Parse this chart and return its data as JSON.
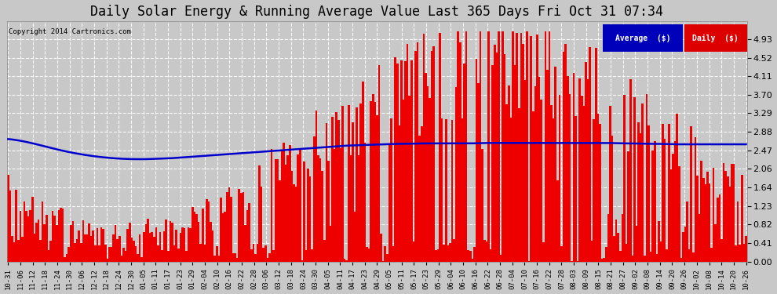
{
  "title": "Daily Solar Energy & Running Average Value Last 365 Days Fri Oct 31 07:34",
  "title_fontsize": 12,
  "copyright_text": "Copyright 2014 Cartronics.com",
  "background_color": "#c8c8c8",
  "plot_bg_color": "#c8c8c8",
  "bar_color": "#ee0000",
  "avg_line_color": "#0000cc",
  "ymax": 5.34,
  "yticks": [
    0.0,
    0.41,
    0.82,
    1.23,
    1.64,
    2.06,
    2.47,
    2.88,
    3.29,
    3.7,
    4.11,
    4.52,
    4.93
  ],
  "xtick_labels": [
    "10-31",
    "11-06",
    "11-12",
    "11-18",
    "11-24",
    "11-30",
    "12-06",
    "12-12",
    "12-18",
    "12-24",
    "12-30",
    "01-05",
    "01-11",
    "01-17",
    "01-23",
    "01-29",
    "02-04",
    "02-10",
    "02-16",
    "02-22",
    "02-28",
    "03-06",
    "03-12",
    "03-18",
    "03-24",
    "03-30",
    "04-05",
    "04-11",
    "04-17",
    "04-23",
    "04-29",
    "05-05",
    "05-11",
    "05-17",
    "05-23",
    "05-29",
    "06-04",
    "06-10",
    "06-16",
    "06-22",
    "06-28",
    "07-04",
    "07-10",
    "07-16",
    "07-22",
    "07-28",
    "08-03",
    "08-09",
    "08-15",
    "08-21",
    "08-27",
    "09-02",
    "09-08",
    "09-14",
    "09-20",
    "09-26",
    "10-02",
    "10-08",
    "10-14",
    "10-20",
    "10-26"
  ],
  "legend_avg_color": "#0000bb",
  "legend_daily_color": "#dd0000",
  "legend_text_color": "#ffffff",
  "avg_line_points": [
    2.72,
    2.68,
    2.62,
    2.55,
    2.48,
    2.42,
    2.37,
    2.33,
    2.3,
    2.28,
    2.27,
    2.27,
    2.28,
    2.29,
    2.31,
    2.33,
    2.35,
    2.37,
    2.39,
    2.41,
    2.43,
    2.45,
    2.47,
    2.49,
    2.51,
    2.53,
    2.55,
    2.57,
    2.58,
    2.59,
    2.6,
    2.61,
    2.61,
    2.62,
    2.62,
    2.62,
    2.62,
    2.62,
    2.63,
    2.63,
    2.63,
    2.63,
    2.63,
    2.63,
    2.63,
    2.63,
    2.63,
    2.63,
    2.63,
    2.62,
    2.62,
    2.61,
    2.61,
    2.6,
    2.6,
    2.6,
    2.6,
    2.6,
    2.6,
    2.6
  ]
}
